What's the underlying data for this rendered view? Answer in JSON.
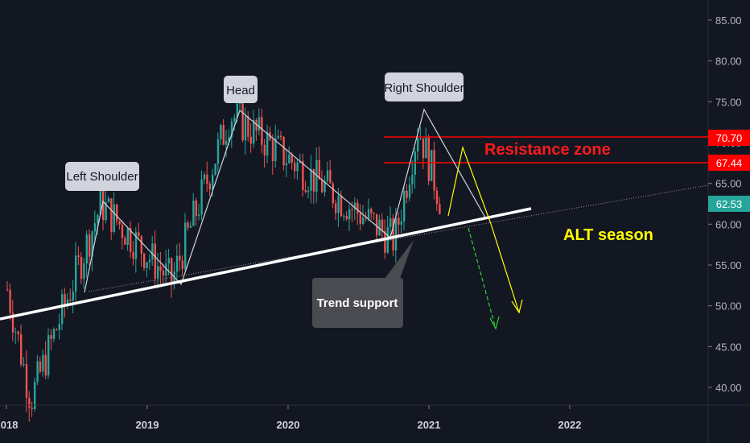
{
  "chart_data": {
    "type": "candlestick",
    "x_ticks": [
      "2018",
      "2019",
      "2020",
      "2021",
      "2022"
    ],
    "y_ticks": [
      "85.00",
      "80.00",
      "75.00",
      "70.00",
      "65.00",
      "60.00",
      "55.00",
      "50.00",
      "45.00",
      "40.00"
    ],
    "ylim": [
      37.5,
      87.5
    ],
    "current_price": "62.53",
    "resistance_upper": "70.70",
    "resistance_lower": "67.44",
    "resistance_upper_value": 70.7,
    "resistance_lower_value": 67.44,
    "current_price_value": 62.53,
    "annotations": {
      "left_shoulder": "Left Shoulder",
      "head": "Head",
      "right_shoulder": "Right Shoulder",
      "resistance_zone": "Resistance zone",
      "alt_season": "ALT season",
      "trend_support": "Trend support"
    },
    "key_points": [
      {
        "label": "start",
        "date": "2018-01",
        "value": 52
      },
      {
        "label": "low",
        "date": "2018-03",
        "value": 38.5
      },
      {
        "label": "left-shoulder-peak",
        "date": "2018-09",
        "value": 62.5
      },
      {
        "label": "neck-low",
        "date": "2019-03",
        "value": 53
      },
      {
        "label": "head-peak",
        "date": "2019-08",
        "value": 73.5
      },
      {
        "label": "mid",
        "date": "2020-01",
        "value": 68
      },
      {
        "label": "neck-low-2",
        "date": "2020-10",
        "value": 58
      },
      {
        "label": "right-shoulder-peak",
        "date": "2020-12",
        "value": 72
      },
      {
        "label": "last",
        "date": "2021-02",
        "value": 62.5
      }
    ],
    "colors": {
      "background": "#131722",
      "up": "#26a69a",
      "down": "#ef5350",
      "resistance": "#ff0000",
      "alt_season": "#ffff00",
      "projection_yellow": "#ffff00",
      "projection_green": "#2fd62f",
      "current_price_bg": "#26a69a",
      "resistance_label_bg": "#ff0000"
    }
  }
}
